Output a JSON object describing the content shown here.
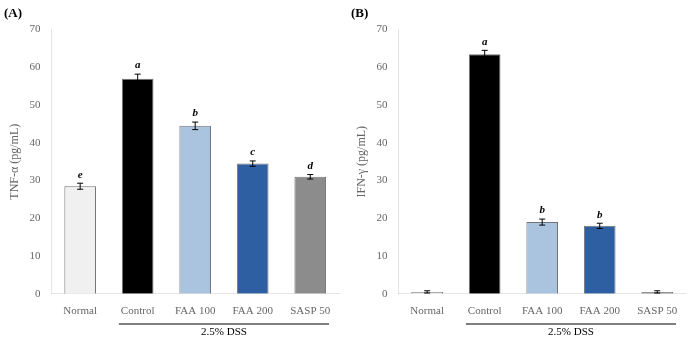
{
  "chart_data": [
    {
      "type": "bar",
      "title": "(A)",
      "categories": [
        "Normal",
        "Control",
        "FAA 100",
        "FAA 200",
        "SASP 50"
      ],
      "values": [
        28.5,
        57.0,
        44.5,
        34.5,
        31.0
      ],
      "errors": [
        0.8,
        1.2,
        1.0,
        0.7,
        0.6
      ],
      "colors": [
        "#f0f0f0",
        "#000000",
        "#aac4e0",
        "#2e5fa3",
        "#8c8c8c"
      ],
      "ylabel": "TNF-α (pg/mL)",
      "ylim": [
        0,
        70
      ],
      "yticks": [
        0,
        10,
        20,
        30,
        40,
        50,
        60,
        70
      ],
      "grid": false,
      "annotations": [
        {
          "text": "e",
          "category": "Normal"
        },
        {
          "text": "a",
          "category": "Control"
        },
        {
          "text": "b",
          "category": "FAA 100"
        },
        {
          "text": "c",
          "category": "FAA 200"
        },
        {
          "text": "d",
          "category": "SASP 50"
        },
        {
          "text": "2.5% DSS",
          "from": "Control",
          "to": "SASP 50"
        }
      ]
    },
    {
      "type": "bar",
      "title": "(B)",
      "categories": [
        "Normal",
        "Control",
        "FAA 100",
        "FAA 200",
        "SASP 50"
      ],
      "values": [
        0.5,
        63.5,
        19.0,
        18.0,
        0.5
      ],
      "errors": [
        0.3,
        1.0,
        0.8,
        0.7,
        0.3
      ],
      "colors": [
        "#f0f0f0",
        "#000000",
        "#aac4e0",
        "#2e5fa3",
        "#8c8c8c"
      ],
      "ylabel": "IFN-γ (pg/mL)",
      "ylim": [
        0,
        70
      ],
      "yticks": [
        0,
        10,
        20,
        30,
        40,
        50,
        60,
        70
      ],
      "grid": false,
      "annotations": [
        {
          "text": "a",
          "category": "Control"
        },
        {
          "text": "b",
          "category": "FAA 100"
        },
        {
          "text": "b",
          "category": "FAA 200"
        },
        {
          "text": "2.5% DSS",
          "from": "Control",
          "to": "SASP 50"
        }
      ]
    }
  ]
}
